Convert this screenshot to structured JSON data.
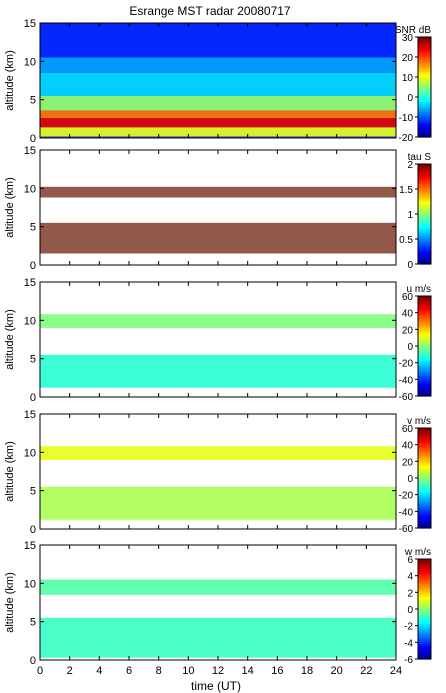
{
  "figure": {
    "title": "Esrange MST radar 20080717",
    "xlabel": "time (UT)",
    "x_ticks": [
      0,
      2,
      4,
      6,
      8,
      10,
      12,
      14,
      16,
      18,
      20,
      22,
      24
    ]
  },
  "chart_data": [
    {
      "type": "heatmap",
      "title": "Esrange MST radar 20080717",
      "ylabel": "altitude (km)",
      "xlabel": "",
      "xlim": [
        0,
        24
      ],
      "ylim": [
        0,
        15
      ],
      "y_ticks": [
        0,
        5,
        10,
        15
      ],
      "colorbar": {
        "label": "SNR dB",
        "range": [
          -20,
          30
        ],
        "ticks": [
          30,
          20,
          10,
          0,
          -10,
          -20
        ],
        "colormap": "jet"
      },
      "background": "#3040d8",
      "layers": [
        {
          "kind": "band",
          "alt_range": [
            0.2,
            1.4
          ],
          "value": 10
        },
        {
          "kind": "band",
          "alt_range": [
            1.4,
            2.6
          ],
          "value": 25
        },
        {
          "kind": "band",
          "alt_range": [
            2.6,
            3.6
          ],
          "value": 18
        },
        {
          "kind": "band",
          "alt_range": [
            3.6,
            5.5
          ],
          "value": 6
        },
        {
          "kind": "band",
          "alt_range": [
            5.5,
            8.5
          ],
          "value": -3
        },
        {
          "kind": "band",
          "alt_range": [
            8.5,
            10.5
          ],
          "value": -6
        },
        {
          "kind": "band",
          "alt_range": [
            10.5,
            15
          ],
          "value": -12
        }
      ]
    },
    {
      "type": "heatmap",
      "ylabel": "altitude (km)",
      "xlabel": "",
      "xlim": [
        0,
        24
      ],
      "ylim": [
        0,
        15
      ],
      "y_ticks": [
        0,
        5,
        10,
        15
      ],
      "colorbar": {
        "label": "tau S",
        "range": [
          0,
          2
        ],
        "ticks": [
          2,
          1.5,
          1,
          0.5,
          0
        ],
        "colormap": "jet"
      },
      "background": "#ffffff",
      "layers": [
        {
          "kind": "band",
          "alt_range": [
            1.5,
            5.5
          ],
          "value": 2,
          "color": "#8b4a3c"
        },
        {
          "kind": "band",
          "alt_range": [
            8.8,
            10.2
          ],
          "value": 2,
          "color": "#8b4a3c"
        }
      ]
    },
    {
      "type": "heatmap",
      "ylabel": "altitude (km)",
      "xlabel": "",
      "xlim": [
        0,
        24
      ],
      "ylim": [
        0,
        15
      ],
      "y_ticks": [
        0,
        5,
        10,
        15
      ],
      "colorbar": {
        "label": "u m/s",
        "range": [
          -60,
          60
        ],
        "ticks": [
          60,
          40,
          20,
          0,
          -20,
          -40,
          -60
        ],
        "colormap": "jet"
      },
      "background": "#ffffff",
      "layers": [
        {
          "kind": "band",
          "alt_range": [
            1.2,
            5.5
          ],
          "value": -10
        },
        {
          "kind": "band",
          "alt_range": [
            9.0,
            10.8
          ],
          "value": 0
        }
      ]
    },
    {
      "type": "heatmap",
      "ylabel": "altitude (km)",
      "xlabel": "",
      "xlim": [
        0,
        24
      ],
      "ylim": [
        0,
        15
      ],
      "y_ticks": [
        0,
        5,
        10,
        15
      ],
      "colorbar": {
        "label": "v m/s",
        "range": [
          -60,
          60
        ],
        "ticks": [
          60,
          40,
          20,
          0,
          -20,
          -40,
          -60
        ],
        "colormap": "jet"
      },
      "background": "#ffffff",
      "layers": [
        {
          "kind": "band",
          "alt_range": [
            1.2,
            5.5
          ],
          "value": 5
        },
        {
          "kind": "band",
          "alt_range": [
            9.0,
            10.8
          ],
          "value": 12
        }
      ]
    },
    {
      "type": "heatmap",
      "ylabel": "altitude (km)",
      "xlabel": "time (UT)",
      "xlim": [
        0,
        24
      ],
      "ylim": [
        0,
        15
      ],
      "y_ticks": [
        0,
        5,
        10,
        15
      ],
      "colorbar": {
        "label": "w m/s",
        "range": [
          -6,
          6
        ],
        "ticks": [
          6,
          4,
          2,
          0,
          -2,
          -4,
          -6
        ],
        "colormap": "jet"
      },
      "background": "#ffffff",
      "layers": [
        {
          "kind": "band",
          "alt_range": [
            0.3,
            5.5
          ],
          "value": -0.8
        },
        {
          "kind": "band",
          "alt_range": [
            8.5,
            10.5
          ],
          "value": -0.5
        }
      ]
    }
  ]
}
